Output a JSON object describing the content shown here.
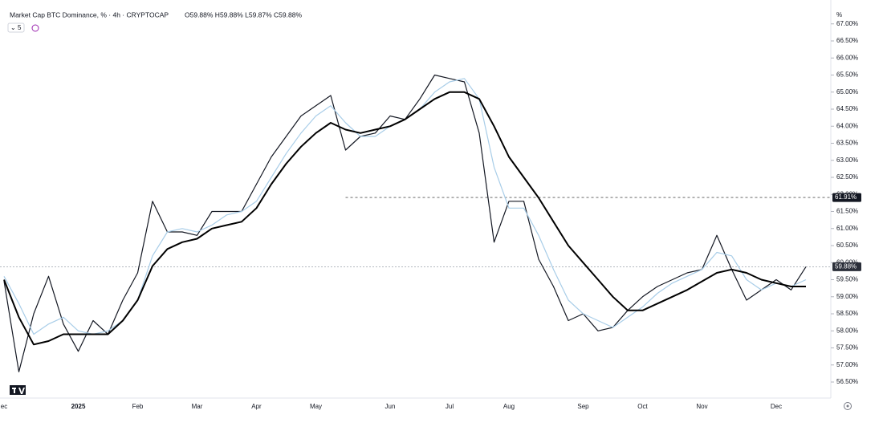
{
  "chart_data": {
    "type": "line",
    "title": "Market Cap BTC Dominance, % · 4h · CRYPTOCAP",
    "subtitle": "O59.88% H59.88% L59.87% C59.88%",
    "indicators_hidden": 5,
    "y_label": "%",
    "categories": [
      "ec",
      null,
      null,
      null,
      null,
      "2025",
      null,
      null,
      null,
      "Feb",
      null,
      null,
      null,
      "Mar",
      null,
      null,
      null,
      "Apr",
      null,
      null,
      null,
      "May",
      null,
      null,
      null,
      null,
      "Jun",
      null,
      null,
      null,
      "Jul",
      null,
      null,
      null,
      "Aug",
      null,
      null,
      null,
      null,
      "Sep",
      null,
      null,
      null,
      "Oct",
      null,
      null,
      null,
      "Nov",
      null,
      null,
      null,
      null,
      "Dec",
      null,
      null
    ],
    "series": [
      {
        "color": "#131722",
        "width": 1.2,
        "values": [
          59.46,
          56.8,
          58.5,
          59.6,
          58.2,
          57.4,
          58.3,
          57.9,
          58.9,
          59.7,
          61.8,
          60.9,
          60.9,
          60.8,
          61.5,
          61.5,
          61.5,
          62.3,
          63.1,
          63.7,
          64.3,
          64.6,
          64.9,
          63.3,
          63.7,
          63.8,
          64.3,
          64.2,
          64.8,
          65.5,
          65.4,
          65.3,
          63.8,
          60.6,
          61.8,
          61.8,
          60.1,
          59.3,
          58.3,
          58.5,
          58.0,
          58.1,
          58.6,
          59.0,
          59.3,
          59.5,
          59.7,
          59.8,
          60.8,
          59.8,
          58.9,
          59.2,
          59.5,
          59.2,
          59.88
        ]
      },
      {
        "color": "#a8cde8",
        "width": 1.2,
        "values": [
          59.6,
          58.8,
          57.9,
          58.2,
          58.4,
          58.0,
          57.9,
          58.0,
          58.3,
          58.9,
          60.2,
          60.9,
          61.0,
          60.9,
          61.1,
          61.4,
          61.5,
          61.8,
          62.5,
          63.2,
          63.8,
          64.3,
          64.6,
          64.1,
          63.7,
          63.7,
          64.0,
          64.2,
          64.5,
          65.0,
          65.3,
          65.4,
          64.8,
          62.8,
          61.6,
          61.6,
          60.8,
          59.8,
          58.9,
          58.5,
          58.3,
          58.1,
          58.4,
          58.7,
          59.1,
          59.4,
          59.6,
          59.8,
          60.3,
          60.2,
          59.5,
          59.2,
          59.4,
          59.3,
          59.5
        ]
      },
      {
        "color": "#000000",
        "width": 2,
        "values": [
          59.5,
          58.4,
          57.6,
          57.7,
          57.9,
          57.9,
          57.9,
          57.9,
          58.3,
          58.9,
          59.9,
          60.4,
          60.6,
          60.7,
          61.0,
          61.1,
          61.2,
          61.6,
          62.3,
          62.9,
          63.4,
          63.8,
          64.1,
          63.9,
          63.8,
          63.9,
          64.0,
          64.2,
          64.5,
          64.8,
          65.0,
          65.0,
          64.8,
          64.0,
          63.1,
          62.5,
          61.9,
          61.2,
          60.5,
          60.0,
          59.5,
          59.0,
          58.6,
          58.6,
          58.8,
          59.0,
          59.2,
          59.45,
          59.7,
          59.8,
          59.7,
          59.5,
          59.4,
          59.3,
          59.3
        ]
      }
    ],
    "hlines": [
      {
        "value": 61.91,
        "label": "61.91%"
      },
      {
        "value": 59.88,
        "label": "59.88%"
      }
    ],
    "ylim": [
      56.03,
      67.7
    ],
    "yticks": [
      {
        "value": 56.5,
        "label": "56.50%"
      },
      {
        "value": 57,
        "label": "57.00%"
      },
      {
        "value": 57.5,
        "label": "57.50%"
      },
      {
        "value": 58,
        "label": "58.00%"
      },
      {
        "value": 58.5,
        "label": "58.50%"
      },
      {
        "value": 59,
        "label": "59.00%"
      },
      {
        "value": 59.5,
        "label": "59.50%"
      },
      {
        "value": 60,
        "label": "60.00%"
      },
      {
        "value": 60.5,
        "label": "60.50%"
      },
      {
        "value": 61,
        "label": "61.00%"
      },
      {
        "value": 61.5,
        "label": "61.50%"
      },
      {
        "value": 62,
        "label": "62.00%"
      },
      {
        "value": 62.5,
        "label": "62.50%"
      },
      {
        "value": 63,
        "label": "63.00%"
      },
      {
        "value": 63.5,
        "label": "63.50%"
      },
      {
        "value": 64,
        "label": "64.00%"
      },
      {
        "value": 64.5,
        "label": "64.50%"
      },
      {
        "value": 65,
        "label": "65.00%"
      },
      {
        "value": 65.5,
        "label": "65.50%"
      },
      {
        "value": 66,
        "label": "66.00%"
      },
      {
        "value": 66.5,
        "label": "66.50%"
      },
      {
        "value": 67,
        "label": "67.00%"
      }
    ],
    "grid": false
  }
}
